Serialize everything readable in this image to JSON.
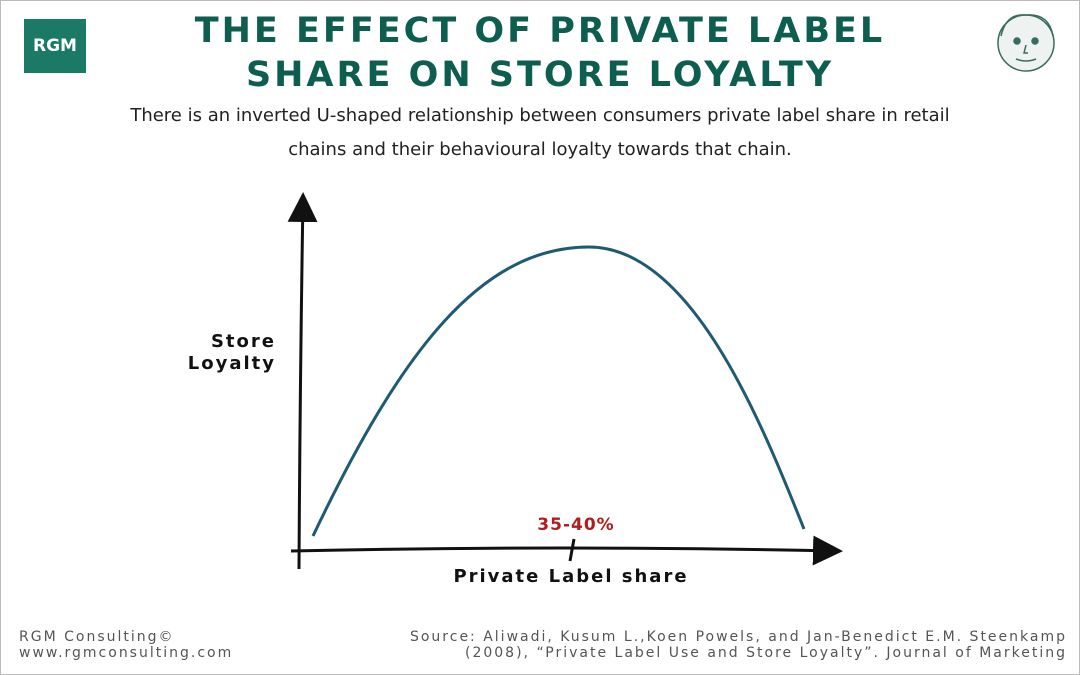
{
  "logo": "RGM",
  "header": {
    "title_lines": [
      "THE EFFECT OF PRIVATE LABEL",
      "SHARE ON STORE LOYALTY"
    ],
    "subtitle_lines": [
      "There is an inverted U-shaped relationship between consumers private label share in retail",
      "chains and their behavioural loyalty towards that chain."
    ]
  },
  "diagram": {
    "y_axis_label_lines": [
      "Store",
      "Loyalty"
    ],
    "x_axis_label": "Private Label share",
    "peak_label": "35-40%"
  },
  "footer": {
    "left_lines": [
      "RGM Consulting©",
      "www.rgmconsulting.com"
    ],
    "right_lines": [
      "Source: Aliwadi, Kusum L.,Koen Powels, and Jan-Benedict E.M. Steenkamp",
      "(2008), “Private Label Use and Store Loyalty”. Journal of Marketing"
    ]
  }
}
